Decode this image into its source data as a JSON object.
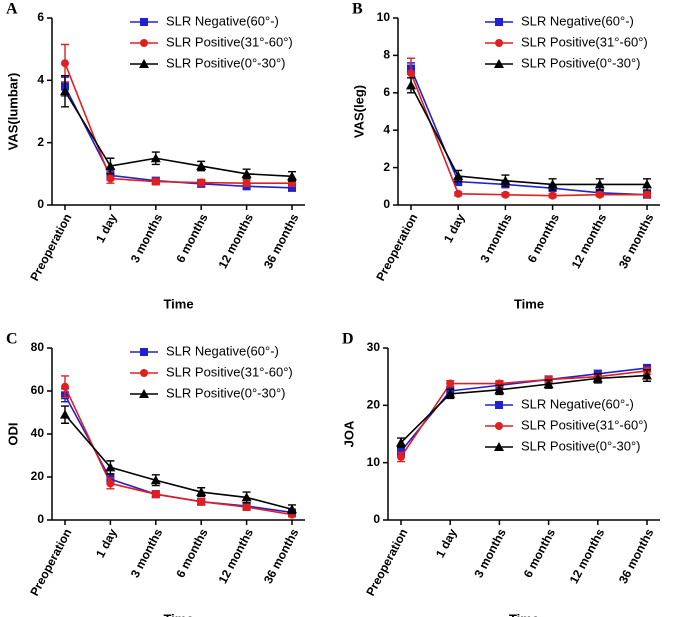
{
  "chart_data": [
    {
      "type": "line",
      "panel": "A",
      "ylabel": "VAS(lumbar)",
      "xlabel": "Time",
      "categories": [
        "Preoperation",
        "1 day",
        "3 months",
        "6 months",
        "12 months",
        "36 months"
      ],
      "ylim": [
        0,
        6
      ],
      "yticks": [
        0,
        2,
        4,
        6
      ],
      "legend_loc": "upper right",
      "series": [
        {
          "name": "SLR Negative(60°-)",
          "color": "#2222cc",
          "marker": "square",
          "values": [
            3.8,
            0.95,
            0.78,
            0.68,
            0.6,
            0.55
          ],
          "errors": [
            0.3,
            0.15,
            0.1,
            0.1,
            0.1,
            0.1
          ]
        },
        {
          "name": "SLR Positive(31°-60°)",
          "color": "#e02020",
          "marker": "circle",
          "values": [
            4.55,
            0.85,
            0.75,
            0.72,
            0.7,
            0.7
          ],
          "errors": [
            0.6,
            0.15,
            0.1,
            0.1,
            0.1,
            0.1
          ]
        },
        {
          "name": "SLR Positive(0°-30°)",
          "color": "#000000",
          "marker": "triangle",
          "values": [
            3.65,
            1.25,
            1.5,
            1.25,
            1.0,
            0.92
          ],
          "errors": [
            0.5,
            0.25,
            0.2,
            0.15,
            0.15,
            0.15
          ]
        }
      ]
    },
    {
      "type": "line",
      "panel": "B",
      "ylabel": "VAS(leg)",
      "xlabel": "Time",
      "categories": [
        "Preoperation",
        "1 day",
        "3 months",
        "6 months",
        "12 months",
        "36 months"
      ],
      "ylim": [
        0,
        10
      ],
      "yticks": [
        0,
        2,
        4,
        6,
        8,
        10
      ],
      "legend_loc": "upper right",
      "series": [
        {
          "name": "SLR Negative(60°-)",
          "color": "#2222cc",
          "marker": "square",
          "values": [
            7.3,
            1.25,
            1.1,
            0.9,
            0.65,
            0.55
          ],
          "errors": [
            0.3,
            0.2,
            0.15,
            0.15,
            0.1,
            0.1
          ]
        },
        {
          "name": "SLR Positive(31°-60°)",
          "color": "#e02020",
          "marker": "circle",
          "values": [
            7.05,
            0.6,
            0.55,
            0.5,
            0.55,
            0.55
          ],
          "errors": [
            0.8,
            0.1,
            0.1,
            0.1,
            0.1,
            0.1
          ]
        },
        {
          "name": "SLR Positive(0°-30°)",
          "color": "#000000",
          "marker": "triangle",
          "values": [
            6.4,
            1.55,
            1.3,
            1.1,
            1.1,
            1.1
          ],
          "errors": [
            0.4,
            0.3,
            0.3,
            0.3,
            0.3,
            0.3
          ]
        }
      ]
    },
    {
      "type": "line",
      "panel": "C",
      "ylabel": "ODI",
      "xlabel": "Time",
      "categories": [
        "Preoperation",
        "1 day",
        "3 months",
        "6 months",
        "12 months",
        "36 months"
      ],
      "ylim": [
        0,
        80
      ],
      "yticks": [
        0,
        20,
        40,
        60,
        80
      ],
      "legend_loc": "upper right",
      "series": [
        {
          "name": "SLR Negative(60°-)",
          "color": "#2222cc",
          "marker": "square",
          "values": [
            58,
            19,
            12,
            8.5,
            6.5,
            3.5
          ],
          "errors": [
            3,
            2,
            1.5,
            1.5,
            1.5,
            1
          ]
        },
        {
          "name": "SLR Positive(31°-60°)",
          "color": "#e02020",
          "marker": "circle",
          "values": [
            62,
            17,
            12,
            8.5,
            6,
            2.5
          ],
          "errors": [
            5,
            2.5,
            1.5,
            1.5,
            1.5,
            1
          ]
        },
        {
          "name": "SLR Positive(0°-30°)",
          "color": "#000000",
          "marker": "triangle",
          "values": [
            49,
            24.5,
            18.5,
            13,
            10.5,
            5
          ],
          "errors": [
            4,
            3,
            2.5,
            2,
            2.5,
            2
          ]
        }
      ]
    },
    {
      "type": "line",
      "panel": "D",
      "ylabel": "JOA",
      "xlabel": "Time",
      "categories": [
        "Preoperation",
        "1 day",
        "3 months",
        "6 months",
        "12 months",
        "36 months"
      ],
      "ylim": [
        0,
        30
      ],
      "yticks": [
        0,
        10,
        20,
        30
      ],
      "legend_loc": "lower right",
      "series": [
        {
          "name": "SLR Negative(60°-)",
          "color": "#2222cc",
          "marker": "square",
          "values": [
            12,
            22.5,
            23.5,
            24.5,
            25.5,
            26.5
          ],
          "errors": [
            0.8,
            0.7,
            0.7,
            0.6,
            0.6,
            0.6
          ]
        },
        {
          "name": "SLR Positive(31°-60°)",
          "color": "#e02020",
          "marker": "circle",
          "values": [
            11,
            23.8,
            23.8,
            24.5,
            25,
            26
          ],
          "errors": [
            0.8,
            0.5,
            0.5,
            0.5,
            0.5,
            0.6
          ]
        },
        {
          "name": "SLR Positive(0°-30°)",
          "color": "#000000",
          "marker": "triangle",
          "values": [
            13.5,
            22,
            22.7,
            23.7,
            24.7,
            25.2
          ],
          "errors": [
            0.8,
            0.8,
            0.8,
            0.7,
            0.8,
            1
          ]
        }
      ]
    }
  ]
}
